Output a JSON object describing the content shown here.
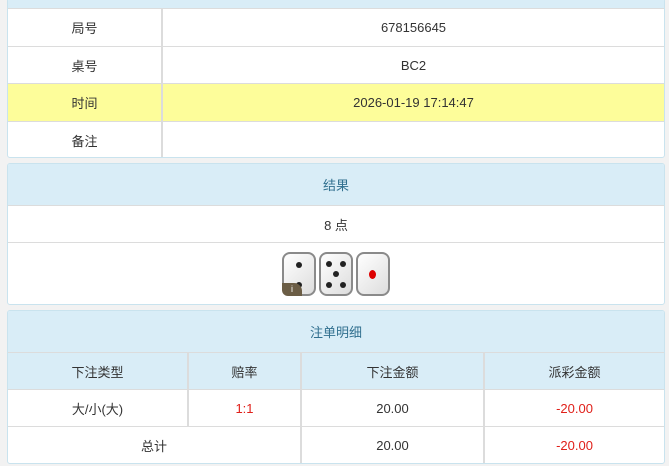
{
  "info": {
    "rows": [
      {
        "label": "局号",
        "value": "678156645"
      },
      {
        "label": "桌号",
        "value": "BC2"
      },
      {
        "label": "时间",
        "value": "2026-01-19 17:14:47"
      },
      {
        "label": "备注",
        "value": ""
      }
    ]
  },
  "result": {
    "title": "结果",
    "points": "8 点",
    "dice": [
      2,
      5,
      1
    ],
    "info_badge": "i"
  },
  "bets": {
    "title": "注单明细",
    "headers": [
      "下注类型",
      "赔率",
      "下注金额",
      "派彩金额"
    ],
    "rows": [
      {
        "type": "大/小(大)",
        "odds": "1:1",
        "amount": "20.00",
        "payout": "-20.00"
      }
    ],
    "total": {
      "label": "总计",
      "amount": "20.00",
      "payout": "-20.00"
    }
  },
  "colors": {
    "highlight": "#fdfd9a",
    "header": "#d9edf7",
    "negative": "#e0201a"
  }
}
